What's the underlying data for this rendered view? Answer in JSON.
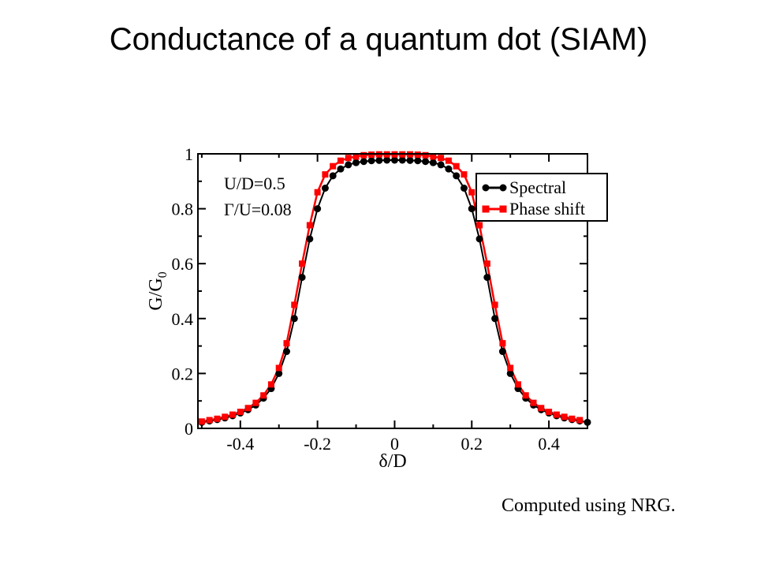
{
  "slide": {
    "title": "Conductance of a quantum dot (SIAM)",
    "caption": "Computed using NRG."
  },
  "chart_data": {
    "type": "line",
    "xlabel": "δ/D",
    "ylabel_base": "G/G",
    "ylabel_sub": "0",
    "xlim": [
      -0.51,
      0.5
    ],
    "ylim": [
      0,
      1
    ],
    "xticks": [
      -0.4,
      -0.2,
      0,
      0.2,
      0.4
    ],
    "xtick_labels": [
      "-0.4",
      "-0.2",
      "0",
      "0.2",
      "0.4"
    ],
    "yticks": [
      0,
      0.2,
      0.4,
      0.6,
      0.8,
      1
    ],
    "ytick_labels": [
      "0",
      "0.2",
      "0.4",
      "0.6",
      "0.8",
      "1"
    ],
    "grid": false,
    "legend_position": "top-right",
    "annotations": [
      "U/D=0.5",
      "Γ/U=0.08"
    ],
    "series": [
      {
        "name": "Spectral",
        "color": "#000000",
        "marker": "circle",
        "x": [
          -0.5,
          -0.48,
          -0.46,
          -0.44,
          -0.42,
          -0.4,
          -0.38,
          -0.36,
          -0.34,
          -0.32,
          -0.3,
          -0.28,
          -0.26,
          -0.24,
          -0.22,
          -0.2,
          -0.18,
          -0.16,
          -0.14,
          -0.12,
          -0.1,
          -0.08,
          -0.06,
          -0.04,
          -0.02,
          0,
          0.02,
          0.04,
          0.06,
          0.08,
          0.1,
          0.12,
          0.14,
          0.16,
          0.18,
          0.2,
          0.22,
          0.24,
          0.26,
          0.28,
          0.3,
          0.32,
          0.34,
          0.36,
          0.38,
          0.4,
          0.42,
          0.44,
          0.46,
          0.48,
          0.5
        ],
        "y": [
          0.022,
          0.027,
          0.032,
          0.038,
          0.046,
          0.056,
          0.068,
          0.085,
          0.11,
          0.145,
          0.2,
          0.28,
          0.4,
          0.55,
          0.69,
          0.8,
          0.875,
          0.92,
          0.945,
          0.96,
          0.968,
          0.972,
          0.975,
          0.976,
          0.977,
          0.977,
          0.977,
          0.976,
          0.975,
          0.972,
          0.968,
          0.96,
          0.945,
          0.92,
          0.875,
          0.8,
          0.69,
          0.55,
          0.4,
          0.28,
          0.2,
          0.145,
          0.11,
          0.085,
          0.068,
          0.056,
          0.046,
          0.038,
          0.032,
          0.027,
          0.022
        ]
      },
      {
        "name": "Phase shift",
        "color": "#ff0000",
        "marker": "square",
        "x": [
          -0.5,
          -0.48,
          -0.46,
          -0.44,
          -0.42,
          -0.4,
          -0.38,
          -0.36,
          -0.34,
          -0.32,
          -0.3,
          -0.28,
          -0.26,
          -0.24,
          -0.22,
          -0.2,
          -0.18,
          -0.16,
          -0.14,
          -0.12,
          -0.1,
          -0.08,
          -0.06,
          -0.04,
          -0.02,
          0,
          0.02,
          0.04,
          0.06,
          0.08,
          0.1,
          0.12,
          0.14,
          0.16,
          0.18,
          0.2,
          0.22,
          0.24,
          0.26,
          0.28,
          0.3,
          0.32,
          0.34,
          0.36,
          0.38,
          0.4,
          0.42,
          0.44,
          0.46,
          0.48
        ],
        "y": [
          0.025,
          0.03,
          0.035,
          0.042,
          0.05,
          0.06,
          0.074,
          0.093,
          0.12,
          0.16,
          0.22,
          0.31,
          0.45,
          0.6,
          0.74,
          0.86,
          0.925,
          0.955,
          0.975,
          0.985,
          0.99,
          0.995,
          0.997,
          0.998,
          0.998,
          0.998,
          0.998,
          0.998,
          0.997,
          0.995,
          0.99,
          0.985,
          0.975,
          0.955,
          0.925,
          0.86,
          0.74,
          0.6,
          0.45,
          0.31,
          0.22,
          0.16,
          0.12,
          0.093,
          0.074,
          0.06,
          0.05,
          0.042,
          0.035,
          0.03
        ]
      }
    ]
  }
}
